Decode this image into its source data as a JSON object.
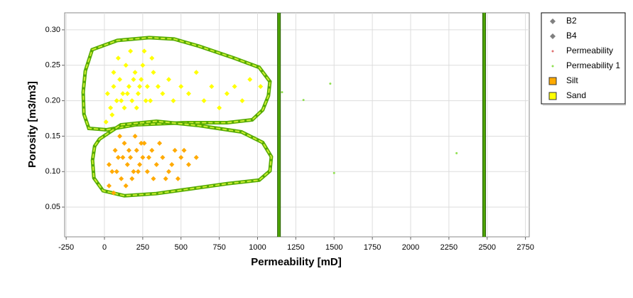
{
  "chart_data": {
    "type": "scatter",
    "xlabel": "Permeability [mD]",
    "ylabel": "Porosity [m3/m3]",
    "xlim": [
      -260,
      2775
    ],
    "ylim": [
      0.008,
      0.324
    ],
    "xticks": [
      -250,
      0,
      250,
      500,
      750,
      1000,
      1250,
      1500,
      1750,
      2000,
      2250,
      2500,
      2750
    ],
    "yticks": [
      0.05,
      {
        "value": 0.1,
        "label": "0.10"
      },
      0.15,
      {
        "value": 0.2,
        "label": "0.20"
      },
      0.25,
      {
        "value": 0.3,
        "label": "0.30"
      }
    ],
    "grid": true,
    "legend": "outside-right",
    "series": [
      {
        "name": "B2",
        "color": "#808080",
        "marker": "diamond",
        "x": [],
        "y": []
      },
      {
        "name": "B4",
        "color": "#808080",
        "marker": "diamond",
        "x": [],
        "y": []
      },
      {
        "name": "Permeability",
        "color": "#e07070",
        "marker": "dot",
        "x": [],
        "y": []
      },
      {
        "name": "Permeability 1",
        "color": "#90e050",
        "marker": "dot",
        "x": [
          1160,
          1300,
          1475,
          1500,
          2300
        ],
        "y": [
          0.212,
          0.201,
          0.224,
          0.098,
          0.126
        ]
      },
      {
        "name": "Silt",
        "color": "#ffaa00",
        "marker": "square",
        "x": [
          30,
          50,
          70,
          90,
          110,
          130,
          150,
          170,
          190,
          210,
          230,
          250,
          280,
          310,
          340,
          380,
          420,
          460,
          500,
          550,
          600,
          30,
          60,
          100,
          140,
          200,
          260,
          320,
          360,
          400,
          80,
          120,
          160,
          180,
          220,
          240,
          290,
          440,
          480,
          520
        ],
        "y": [
          0.11,
          0.1,
          0.13,
          0.12,
          0.09,
          0.14,
          0.11,
          0.12,
          0.1,
          0.13,
          0.11,
          0.12,
          0.1,
          0.13,
          0.11,
          0.12,
          0.1,
          0.13,
          0.12,
          0.11,
          0.12,
          0.08,
          0.07,
          0.15,
          0.08,
          0.15,
          0.14,
          0.09,
          0.14,
          0.09,
          0.1,
          0.12,
          0.13,
          0.09,
          0.1,
          0.14,
          0.12,
          0.11,
          0.09,
          0.13
        ]
      },
      {
        "name": "Sand",
        "color": "#ffff00",
        "marker": "square",
        "x": [
          20,
          40,
          60,
          80,
          100,
          120,
          140,
          160,
          180,
          200,
          220,
          240,
          260,
          280,
          300,
          320,
          350,
          380,
          420,
          450,
          500,
          550,
          600,
          650,
          700,
          750,
          800,
          850,
          900,
          950,
          1020,
          10,
          50,
          90,
          130,
          170,
          210,
          250,
          310,
          60,
          110,
          150,
          190,
          230,
          270
        ],
        "y": [
          0.21,
          0.19,
          0.22,
          0.2,
          0.23,
          0.21,
          0.25,
          0.22,
          0.2,
          0.24,
          0.21,
          0.23,
          0.27,
          0.22,
          0.2,
          0.24,
          0.22,
          0.21,
          0.23,
          0.2,
          0.22,
          0.21,
          0.24,
          0.2,
          0.22,
          0.19,
          0.21,
          0.22,
          0.2,
          0.23,
          0.22,
          0.17,
          0.18,
          0.26,
          0.19,
          0.27,
          0.19,
          0.25,
          0.26,
          0.24,
          0.2,
          0.21,
          0.23,
          0.22,
          0.2
        ]
      }
    ],
    "outlines": [
      {
        "x": [
          -80,
          84,
          292,
          455,
          617,
          849,
          1011,
          1081,
          1071,
          1034,
          965,
          802,
          524,
          200,
          14,
          -102,
          -134,
          -139,
          -125
        ],
        "y": [
          0.272,
          0.285,
          0.289,
          0.287,
          0.277,
          0.26,
          0.247,
          0.227,
          0.207,
          0.187,
          0.173,
          0.169,
          0.169,
          0.166,
          0.159,
          0.161,
          0.181,
          0.212,
          0.242
        ]
      },
      {
        "x": [
          -32,
          107,
          339,
          617,
          895,
          1034,
          1090,
          1081,
          1011,
          802,
          571,
          339,
          130,
          -9,
          -69,
          -78,
          -64
        ],
        "y": [
          0.146,
          0.166,
          0.171,
          0.165,
          0.156,
          0.141,
          0.121,
          0.101,
          0.088,
          0.083,
          0.076,
          0.069,
          0.066,
          0.073,
          0.091,
          0.116,
          0.136
        ]
      }
    ],
    "vlines": [
      1140,
      2480
    ]
  }
}
